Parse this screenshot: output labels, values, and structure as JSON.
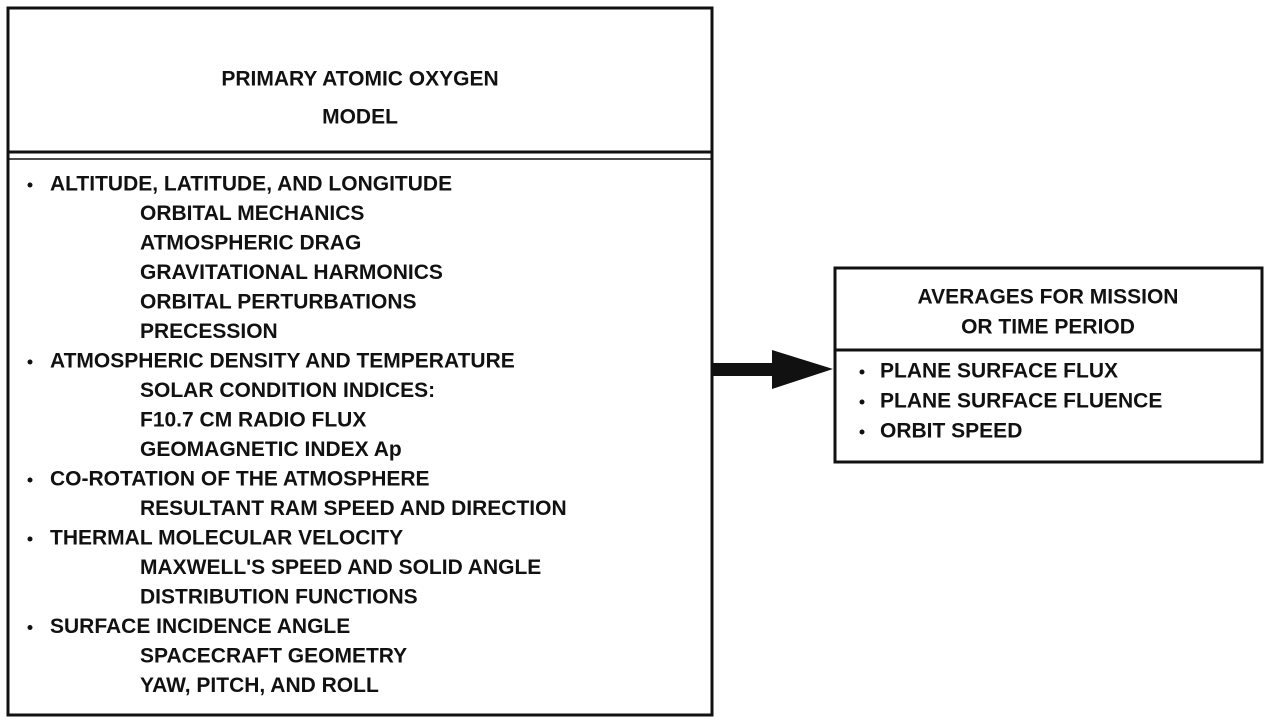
{
  "left_box": {
    "title": [
      "PRIMARY ATOMIC OXYGEN",
      "MODEL"
    ],
    "items": [
      {
        "text": "ALTITUDE, LATITUDE, AND LONGITUDE",
        "sub": [
          "ORBITAL MECHANICS",
          "ATMOSPHERIC DRAG",
          "GRAVITATIONAL HARMONICS",
          "ORBITAL PERTURBATIONS",
          "PRECESSION"
        ]
      },
      {
        "text": "ATMOSPHERIC DENSITY AND TEMPERATURE",
        "sub": [
          "SOLAR CONDITION INDICES:",
          "F10.7 CM RADIO FLUX",
          "GEOMAGNETIC INDEX Ap"
        ]
      },
      {
        "text": "CO-ROTATION OF THE ATMOSPHERE",
        "sub": [
          "RESULTANT RAM SPEED AND DIRECTION"
        ]
      },
      {
        "text": "THERMAL MOLECULAR VELOCITY",
        "sub": [
          "MAXWELL'S SPEED AND SOLID ANGLE",
          "DISTRIBUTION FUNCTIONS"
        ]
      },
      {
        "text": "SURFACE INCIDENCE ANGLE",
        "sub": [
          "SPACECRAFT GEOMETRY",
          "YAW, PITCH, AND ROLL"
        ]
      }
    ]
  },
  "right_box": {
    "title": [
      "AVERAGES FOR MISSION",
      "OR TIME PERIOD"
    ],
    "items": [
      "PLANE SURFACE FLUX",
      "PLANE SURFACE FLUENCE",
      "ORBIT SPEED"
    ]
  }
}
